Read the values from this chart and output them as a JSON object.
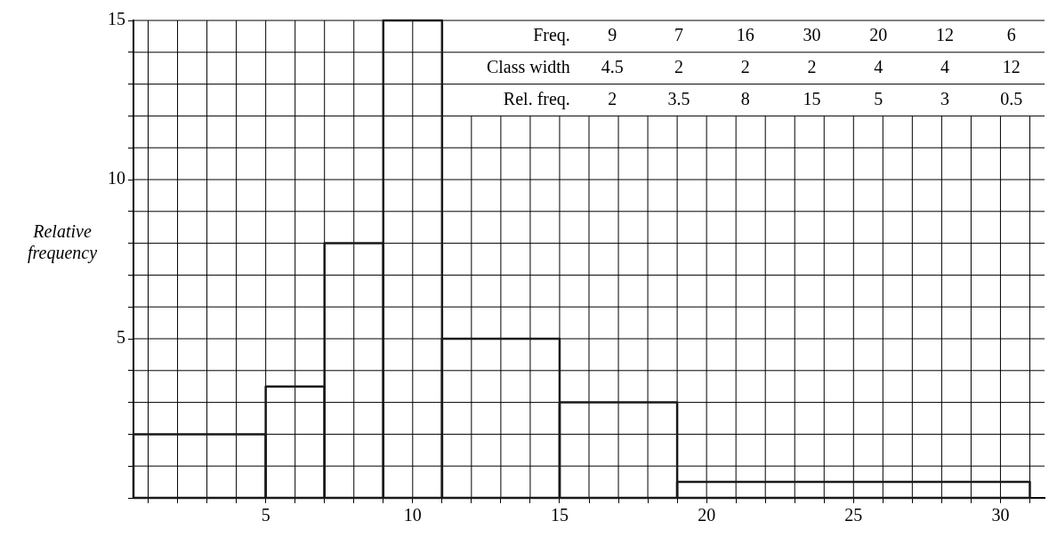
{
  "chart_data": {
    "type": "histogram",
    "ylabel": "Relative frequency",
    "bins": [
      0.5,
      5,
      7,
      9,
      11,
      15,
      19,
      31
    ],
    "values": [
      2,
      3.5,
      8,
      15,
      5,
      3,
      0.5
    ],
    "color": "#1a1a1a",
    "xlim": [
      0.5,
      31.5
    ],
    "xticks": [
      {
        "value": 1,
        "label": null
      },
      {
        "value": 2,
        "label": null
      },
      {
        "value": 3,
        "label": null
      },
      {
        "value": 4,
        "label": null
      },
      5,
      {
        "value": 6,
        "label": null
      },
      {
        "value": 7,
        "label": null
      },
      {
        "value": 8,
        "label": null
      },
      {
        "value": 9,
        "label": null
      },
      10,
      {
        "value": 11,
        "label": null
      },
      {
        "value": 12,
        "label": null
      },
      {
        "value": 13,
        "label": null
      },
      {
        "value": 14,
        "label": null
      },
      15,
      {
        "value": 16,
        "label": null
      },
      {
        "value": 17,
        "label": null
      },
      {
        "value": 18,
        "label": null
      },
      {
        "value": 19,
        "label": null
      },
      20,
      {
        "value": 21,
        "label": null
      },
      {
        "value": 22,
        "label": null
      },
      {
        "value": 23,
        "label": null
      },
      {
        "value": 24,
        "label": null
      },
      25,
      {
        "value": 26,
        "label": null
      },
      {
        "value": 27,
        "label": null
      },
      {
        "value": 28,
        "label": null
      },
      {
        "value": 29,
        "label": null
      },
      30,
      {
        "value": 31,
        "label": null
      }
    ],
    "ylim": [
      0,
      15
    ],
    "yticks": [
      {
        "value": 0,
        "label": null
      },
      {
        "value": 1,
        "label": null
      },
      {
        "value": 2,
        "label": null
      },
      {
        "value": 3,
        "label": null
      },
      {
        "value": 4,
        "label": null
      },
      5,
      {
        "value": 6,
        "label": null
      },
      {
        "value": 7,
        "label": null
      },
      {
        "value": 8,
        "label": null
      },
      {
        "value": 9,
        "label": null
      },
      10,
      {
        "value": 11,
        "label": null
      },
      {
        "value": 12,
        "label": null
      },
      {
        "value": 13,
        "label": null
      },
      {
        "value": 14,
        "label": null
      },
      15
    ],
    "grid": true,
    "annotations": [
      "Freq.",
      "9",
      "7",
      "16",
      "30",
      "20",
      "12",
      "6",
      "Class width",
      "4.5",
      "2",
      "2",
      "2",
      "4",
      "4",
      "12",
      "Rel. freq.",
      "2",
      "3.5",
      "8",
      "15",
      "5",
      "3",
      "0.5"
    ]
  }
}
